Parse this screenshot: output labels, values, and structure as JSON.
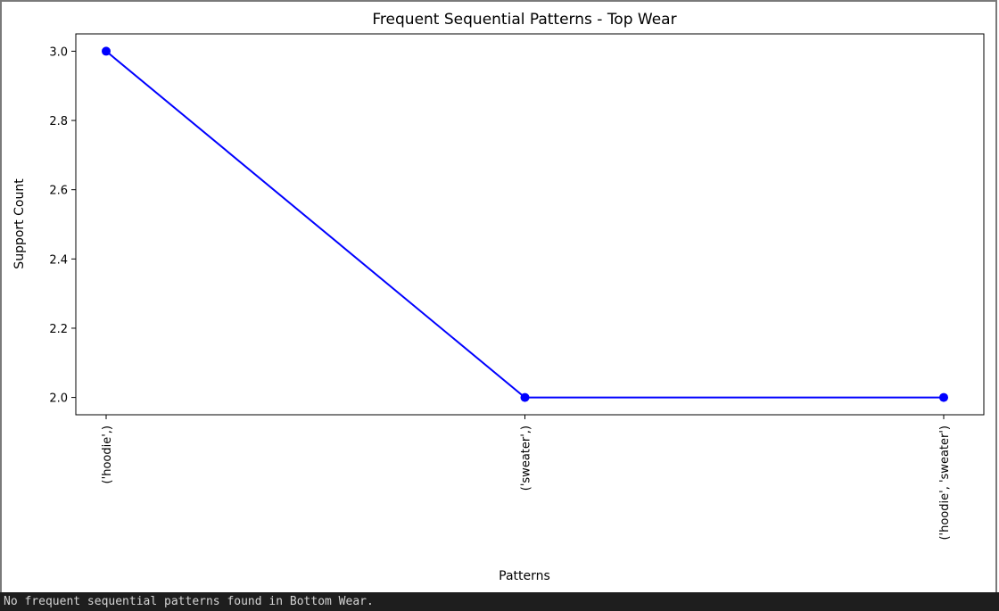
{
  "chart_data": {
    "type": "line",
    "title": "Frequent Sequential Patterns - Top Wear",
    "xlabel": "Patterns",
    "ylabel": "Support Count",
    "categories": [
      "('hoodie',)",
      "('sweater',)",
      "('hoodie', 'sweater')"
    ],
    "series": [
      {
        "values": [
          3,
          2,
          2
        ]
      }
    ],
    "ylim": [
      1.95,
      3.05
    ],
    "yticks": [
      2.0,
      2.2,
      2.4,
      2.6,
      2.8,
      3.0
    ],
    "ytick_labels": [
      "2.0",
      "2.2",
      "2.4",
      "2.6",
      "2.8",
      "3.0"
    ],
    "line_color": "#0000ff",
    "marker": "circle",
    "grid": false,
    "xtick_rotation": "vertical"
  },
  "output": {
    "message": "No frequent sequential patterns found in Bottom Wear."
  }
}
